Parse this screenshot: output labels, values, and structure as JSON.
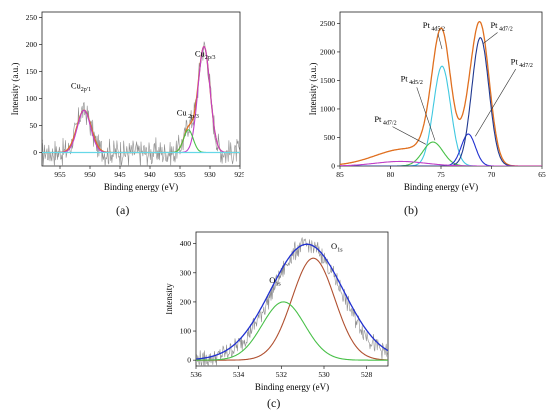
{
  "colors": {
    "raw": "#8c8c8c",
    "fit_magenta": "#c040c8",
    "fit_orange": "#e07020",
    "baseline_cyan": "#66d8e8",
    "green": "#48c048",
    "blue": "#2030d0",
    "darkblue": "#203890",
    "brown": "#b05030",
    "cyan": "#40c8e0"
  },
  "chart_data": [
    {
      "type": "line",
      "panel_label": "(a)",
      "xlabel": "Binding energy (eV)",
      "ylabel": "Intensity (a.u.)",
      "xlim": [
        958,
        925
      ],
      "ylim": [
        -25,
        260
      ],
      "x_ticks": [
        955,
        950,
        945,
        940,
        935,
        930,
        925
      ],
      "y_ticks": [
        0,
        50,
        100,
        150,
        200,
        250
      ],
      "noise_amplitude": 22,
      "annotations": [
        {
          "text": "Cu",
          "sub": "2p′1",
          "x": 951.5,
          "y": 118
        },
        {
          "text": "Cu",
          "sub": " 2p/3",
          "x": 933.7,
          "y": 68
        },
        {
          "text": "Cu",
          "sub": "2p/3",
          "x": 930.8,
          "y": 178
        }
      ],
      "series": [
        {
          "role": "raw",
          "color": "raw",
          "peaks": [
            {
              "c": 951.0,
              "a": 78,
              "w": 1.2
            },
            {
              "c": 933.6,
              "a": 42,
              "w": 0.8
            },
            {
              "c": 931.0,
              "a": 196,
              "w": 1.0
            }
          ]
        },
        {
          "role": "fit",
          "color": "fit_orange",
          "peaks": [
            {
              "c": 951.0,
              "a": 78,
              "w": 1.2
            },
            {
              "c": 933.6,
              "a": 42,
              "w": 0.8
            },
            {
              "c": 931.0,
              "a": 196,
              "w": 1.0
            }
          ]
        },
        {
          "role": "component",
          "color": "fit_magenta",
          "peaks": [
            {
              "c": 951.0,
              "a": 78,
              "w": 1.1
            }
          ]
        },
        {
          "role": "component",
          "color": "fit_magenta",
          "peaks": [
            {
              "c": 931.0,
              "a": 196,
              "w": 1.0
            }
          ]
        },
        {
          "role": "component",
          "color": "green",
          "peaks": [
            {
              "c": 933.6,
              "a": 42,
              "w": 0.8
            }
          ]
        },
        {
          "role": "baseline",
          "color": "baseline_cyan",
          "peaks": []
        }
      ]
    },
    {
      "type": "line",
      "panel_label": "(b)",
      "xlabel": "Binding energy (eV)",
      "ylabel": "Intensity (a.u.)",
      "xlim": [
        85,
        65
      ],
      "ylim": [
        0,
        2700
      ],
      "x_ticks": [
        85,
        80,
        75,
        70,
        65
      ],
      "y_ticks": [
        0,
        500,
        1000,
        1500,
        2000,
        2500
      ],
      "noise_amplitude": 30,
      "annotations": [
        {
          "text": "Pt",
          "sub": " 4d5/2",
          "x": 75.7,
          "y": 2420
        },
        {
          "text": "Pt",
          "sub": " 4d5/2",
          "x": 77.9,
          "y": 1480
        },
        {
          "text": "Pt",
          "sub": " 4d7/2",
          "x": 80.5,
          "y": 770
        },
        {
          "text": "Pt",
          "sub": " 4d7/2",
          "x": 69.0,
          "y": 2420
        },
        {
          "text": "Pt",
          "sub": " 4d7/2",
          "x": 67.0,
          "y": 1780
        }
      ],
      "series": [
        {
          "role": "fit",
          "color": "fit_orange",
          "peaks": [
            {
              "c": 74.9,
              "a": 2060,
              "w": 0.9
            },
            {
              "c": 71.1,
              "a": 2400,
              "w": 0.9
            },
            {
              "c": 75.8,
              "a": 300,
              "w": 1.0
            },
            {
              "c": 72.4,
              "a": 400,
              "w": 0.8
            },
            {
              "c": 78.5,
              "a": 300,
              "w": 3.0
            }
          ]
        },
        {
          "role": "component",
          "color": "cyan",
          "peaks": [
            {
              "c": 74.9,
              "a": 1750,
              "w": 0.85
            }
          ]
        },
        {
          "role": "component",
          "color": "green",
          "peaks": [
            {
              "c": 75.8,
              "a": 420,
              "w": 1.0
            }
          ]
        },
        {
          "role": "component",
          "color": "blue",
          "peaks": [
            {
              "c": 72.3,
              "a": 560,
              "w": 0.7
            }
          ]
        },
        {
          "role": "component",
          "color": "darkblue",
          "peaks": [
            {
              "c": 71.1,
              "a": 2250,
              "w": 0.85
            }
          ]
        },
        {
          "role": "component",
          "color": "fit_magenta",
          "peaks": [
            {
              "c": 79.0,
              "a": 80,
              "w": 2.5
            }
          ]
        }
      ]
    },
    {
      "type": "line",
      "panel_label": "(c)",
      "xlabel": "Binding energy (eV)",
      "ylabel": "Intensity",
      "xlim": [
        536,
        527
      ],
      "ylim": [
        -20,
        440
      ],
      "x_ticks": [
        536,
        534,
        532,
        530,
        528
      ],
      "y_ticks": [
        0,
        100,
        200,
        300,
        400
      ],
      "noise_amplitude": 28,
      "annotations": [
        {
          "text": "O",
          "sub": "1s",
          "x": 532.3,
          "y": 265
        },
        {
          "text": "O",
          "sub": "1s",
          "x": 529.4,
          "y": 382
        }
      ],
      "series": [
        {
          "role": "raw",
          "color": "raw",
          "peaks": [
            {
              "c": 530.8,
              "a": 395,
              "w": 1.6
            }
          ]
        },
        {
          "role": "fit",
          "color": "blue",
          "peaks": [
            {
              "c": 530.8,
              "a": 398,
              "w": 1.7
            }
          ]
        },
        {
          "role": "component",
          "color": "brown",
          "peaks": [
            {
              "c": 530.5,
              "a": 350,
              "w": 1.0
            }
          ]
        },
        {
          "role": "component",
          "color": "green",
          "peaks": [
            {
              "c": 531.9,
              "a": 200,
              "w": 1.0
            }
          ]
        }
      ]
    }
  ]
}
